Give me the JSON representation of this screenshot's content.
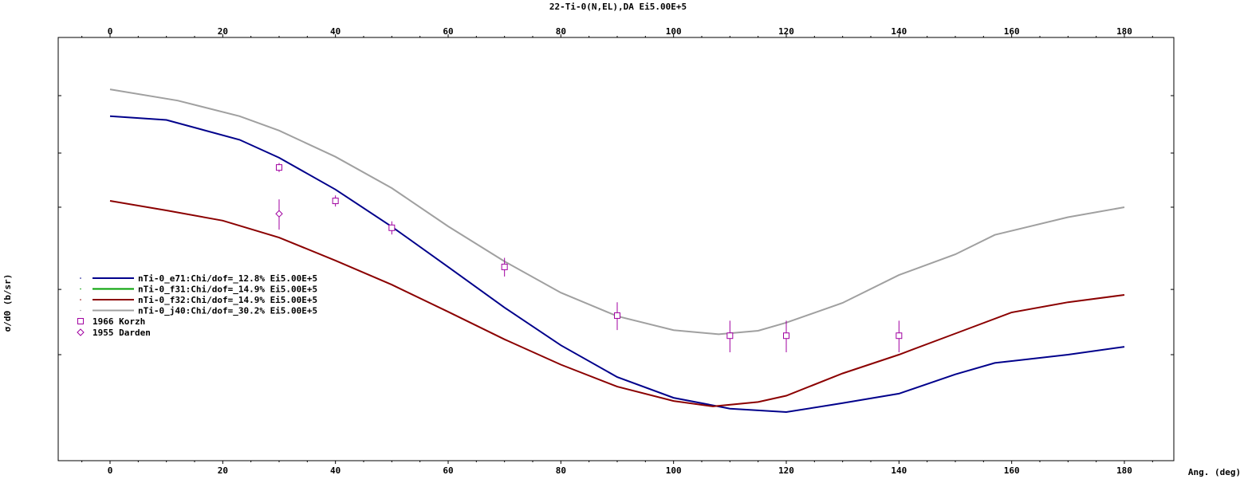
{
  "chart_data": {
    "type": "line",
    "title": "22-Ti-0(N,EL),DA Ei5.00E+5",
    "xlabel": "Ang. (deg)",
    "ylabel": "σ/dΘ (b/sr)",
    "xlim": [
      -9,
      190
    ],
    "x_ticks": [
      0,
      20,
      40,
      60,
      80,
      100,
      120,
      140,
      160,
      180
    ],
    "y_log_scale": true,
    "y_tick_labels_shown": false,
    "grid": false,
    "legend_position": "left",
    "series": [
      {
        "name": "nTi-0_e71:Chi/dof=_12.8% Ei5.00E+5",
        "color": "#00008b",
        "x": [
          0,
          10,
          23,
          30,
          40,
          50,
          60,
          70,
          80,
          90,
          100,
          110,
          120,
          130,
          140,
          150,
          157,
          170,
          180
        ],
        "y": [
          0.88,
          0.86,
          0.76,
          0.68,
          0.558,
          0.443,
          0.345,
          0.268,
          0.212,
          0.174,
          0.153,
          0.143,
          0.14,
          0.148,
          0.157,
          0.177,
          0.19,
          0.2,
          0.21
        ]
      },
      {
        "name": "nTi-0_f31:Chi/dof=_14.9% Ei5.00E+5",
        "color": "#00a000",
        "x": [],
        "y": []
      },
      {
        "name": "nTi-0_f32:Chi/dof=_14.9% Ei5.00E+5",
        "color": "#8b0000",
        "x": [
          0,
          10,
          20,
          30,
          40,
          50,
          60,
          70,
          80,
          90,
          100,
          107,
          115,
          120,
          130,
          140,
          150,
          160,
          170,
          180
        ],
        "y": [
          0.52,
          0.49,
          0.46,
          0.414,
          0.359,
          0.309,
          0.261,
          0.22,
          0.188,
          0.164,
          0.15,
          0.145,
          0.149,
          0.155,
          0.178,
          0.2,
          0.228,
          0.26,
          0.277,
          0.29
        ]
      },
      {
        "name": "nTi-0_j40:Chi/dof=_30.2% Ei5.00E+5",
        "color": "#a0a0a0",
        "x": [
          0,
          12,
          23,
          30,
          40,
          50,
          60,
          70,
          80,
          90,
          100,
          108,
          115,
          120,
          130,
          140,
          150,
          157,
          170,
          180
        ],
        "y": [
          1.04,
          0.97,
          0.88,
          0.805,
          0.684,
          0.563,
          0.444,
          0.357,
          0.294,
          0.254,
          0.233,
          0.227,
          0.232,
          0.244,
          0.276,
          0.328,
          0.373,
          0.421,
          0.47,
          0.5
        ]
      }
    ],
    "experimental": [
      {
        "name": "1966 Korzh",
        "color": "#a000a0",
        "marker": "square",
        "points": [
          {
            "x": 30,
            "y": 0.64,
            "err": 0.018
          },
          {
            "x": 40,
            "y": 0.52,
            "err": 0.018
          },
          {
            "x": 50,
            "y": 0.44,
            "err": 0.018
          },
          {
            "x": 70,
            "y": 0.345,
            "err": 0.02
          },
          {
            "x": 90,
            "y": 0.255,
            "err": 0.022
          },
          {
            "x": 110,
            "y": 0.225,
            "err": 0.022
          },
          {
            "x": 120,
            "y": 0.225,
            "err": 0.022
          },
          {
            "x": 140,
            "y": 0.225,
            "err": 0.022
          }
        ]
      },
      {
        "name": "1955 Darden",
        "color": "#a000a0",
        "marker": "diamond",
        "points": [
          {
            "x": 30,
            "y": 0.48,
            "err": 0.045
          }
        ]
      }
    ]
  }
}
